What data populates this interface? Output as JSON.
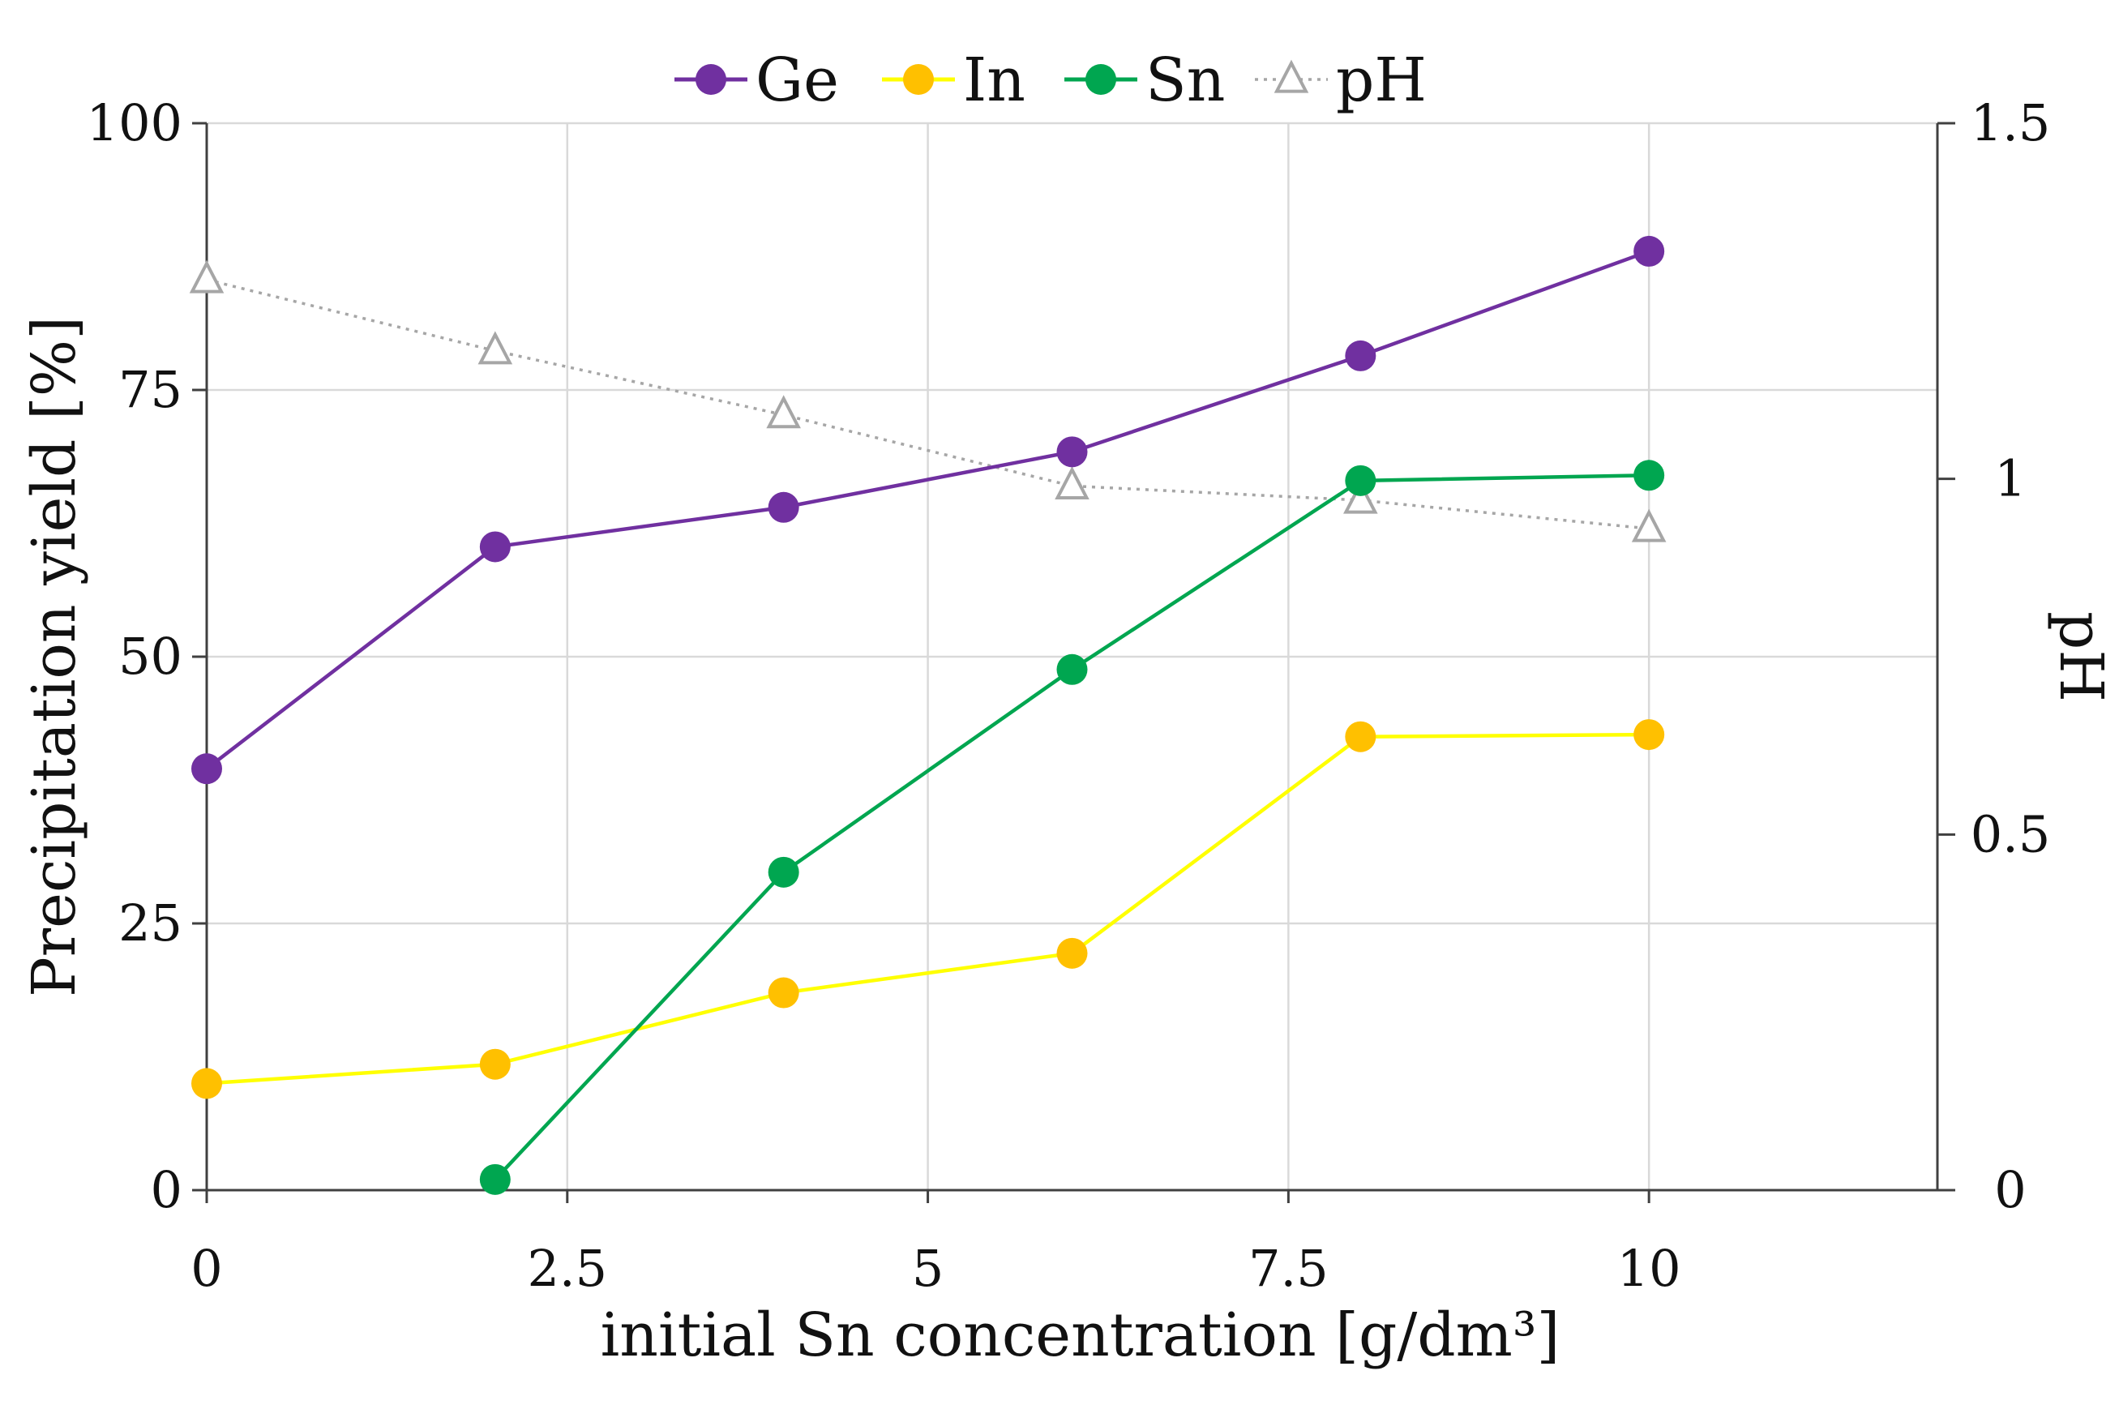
{
  "chart_data": {
    "type": "line",
    "title": "",
    "xlabel": "initial Sn concentration [g/dm³]",
    "ylabel": "Precipitation yield [%]",
    "y2label": "pH",
    "xlim": [
      0,
      12
    ],
    "ylim": [
      0,
      100
    ],
    "y2lim": [
      0,
      1.5
    ],
    "xticks": [
      0,
      2.5,
      5,
      7.5,
      10
    ],
    "xtick_labels": [
      "0",
      "2.5",
      "5",
      "7.5",
      "10"
    ],
    "yticks": [
      0,
      25,
      50,
      75,
      100
    ],
    "ytick_labels": [
      "0",
      "25",
      "50",
      "75",
      "100"
    ],
    "y2ticks": [
      0,
      0.5,
      1,
      1.5
    ],
    "y2tick_labels": [
      "0",
      "0.5",
      "1",
      "1.5"
    ],
    "grid": true,
    "legend_position": "top",
    "series": [
      {
        "name": "Ge",
        "axis": "left",
        "color": "#7030a0",
        "marker": "circle",
        "line_style": "solid",
        "x": [
          0,
          2,
          4,
          6,
          8,
          10
        ],
        "values": [
          39.5,
          60.3,
          64.0,
          69.2,
          78.2,
          88.0
        ]
      },
      {
        "name": "In",
        "axis": "left",
        "color": "#ffff00",
        "marker_color": "#ffc000",
        "marker": "circle",
        "line_style": "solid",
        "x": [
          0,
          2,
          4,
          6,
          8,
          10
        ],
        "values": [
          10.0,
          11.8,
          18.5,
          22.2,
          42.5,
          42.7
        ]
      },
      {
        "name": "Sn",
        "axis": "left",
        "color": "#00a650",
        "marker": "circle",
        "line_style": "solid",
        "x": [
          2,
          4,
          6,
          8,
          10
        ],
        "values": [
          1.0,
          29.8,
          48.8,
          66.5,
          67.0
        ]
      },
      {
        "name": "pH",
        "axis": "right",
        "color": "#a6a6a6",
        "marker": "triangle",
        "line_style": "dotted",
        "x": [
          0,
          2,
          4,
          6,
          8,
          10
        ],
        "values": [
          1.28,
          1.18,
          1.09,
          0.99,
          0.97,
          0.93
        ]
      }
    ]
  }
}
